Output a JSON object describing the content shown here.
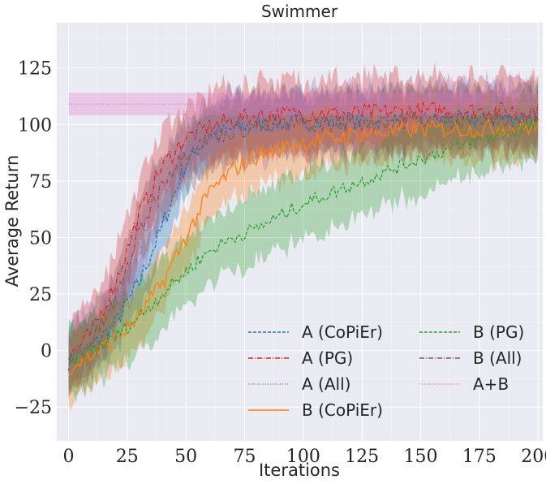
{
  "chart_data": {
    "type": "line",
    "title": "Swimmer",
    "xlabel": "Iterations",
    "ylabel": "Average Return",
    "xlim": [
      -5,
      202
    ],
    "ylim": [
      -40,
      145
    ],
    "xticks": [
      0,
      25,
      50,
      75,
      100,
      125,
      150,
      175,
      200
    ],
    "yticks": [
      -25,
      0,
      25,
      50,
      75,
      100,
      125
    ],
    "ytick_labels": [
      "−25",
      "0",
      "25",
      "50",
      "75",
      "100",
      "125"
    ],
    "grid": true,
    "background": "#EAEAF2",
    "legend": {
      "placement": "lower-right",
      "columns": 2,
      "entries": [
        {
          "name": "A (CoPiEr)",
          "color": "#1f77b4",
          "dash": "dashed"
        },
        {
          "name": "A (PG)",
          "color": "#d62728",
          "dash": "dashdot"
        },
        {
          "name": "A (All)",
          "color": "#9467bd",
          "dash": "dotted"
        },
        {
          "name": "B (CoPiEr)",
          "color": "#ff7f0e",
          "dash": "solid"
        },
        {
          "name": "B (PG)",
          "color": "#2ca02c",
          "dash": "dashed"
        },
        {
          "name": "B (All)",
          "color": "#8c564b",
          "dash": "dashdot"
        },
        {
          "name": "A+B",
          "color": "#e377c2",
          "dash": "dotted"
        }
      ]
    },
    "series": [
      {
        "name": "A (CoPiEr)",
        "color": "#1f77b4",
        "dash": "dashed",
        "band": 12,
        "noise": 4,
        "x": [
          0,
          10,
          20,
          30,
          40,
          50,
          60,
          70,
          80,
          100,
          125,
          150,
          175,
          200
        ],
        "y": [
          -5,
          2,
          12,
          30,
          55,
          83,
          95,
          98,
          100,
          101,
          101,
          102,
          102,
          103
        ]
      },
      {
        "name": "A (PG)",
        "color": "#d62728",
        "dash": "dashdot",
        "band": 15,
        "noise": 4,
        "x": [
          0,
          10,
          20,
          30,
          40,
          50,
          60,
          70,
          80,
          100,
          125,
          150,
          175,
          200
        ],
        "y": [
          -3,
          8,
          30,
          60,
          82,
          94,
          99,
          102,
          104,
          105,
          105,
          106,
          106,
          106
        ]
      },
      {
        "name": "A (All)",
        "color": "#9467bd",
        "dash": "dotted",
        "band": 14,
        "noise": 4,
        "x": [
          0,
          10,
          20,
          30,
          40,
          50,
          60,
          70,
          80,
          100,
          125,
          150,
          175,
          200
        ],
        "y": [
          -4,
          5,
          20,
          45,
          72,
          88,
          95,
          98,
          100,
          101,
          102,
          103,
          103,
          103
        ]
      },
      {
        "name": "B (CoPiEr)",
        "color": "#ff7f0e",
        "dash": "solid",
        "band": 13,
        "noise": 4,
        "x": [
          0,
          10,
          20,
          30,
          40,
          50,
          60,
          70,
          80,
          100,
          125,
          150,
          175,
          200
        ],
        "y": [
          -8,
          -2,
          5,
          15,
          30,
          50,
          70,
          80,
          86,
          92,
          96,
          98,
          98,
          99
        ]
      },
      {
        "name": "B (PG)",
        "color": "#2ca02c",
        "dash": "dashed",
        "band": 15,
        "noise": 3,
        "x": [
          0,
          10,
          20,
          30,
          40,
          50,
          60,
          70,
          80,
          100,
          125,
          150,
          175,
          200
        ],
        "y": [
          -6,
          0,
          6,
          15,
          25,
          35,
          44,
          50,
          54,
          65,
          75,
          85,
          93,
          100
        ]
      },
      {
        "name": "B (All)",
        "color": "#8c564b",
        "dash": "dashdot",
        "band": 14,
        "noise": 4,
        "x": [
          0,
          10,
          20,
          30,
          40,
          50,
          60,
          70,
          80,
          100,
          125,
          150,
          175,
          200
        ],
        "y": [
          -4,
          4,
          22,
          52,
          75,
          88,
          94,
          97,
          99,
          100,
          101,
          102,
          102,
          103
        ]
      },
      {
        "name": "A+B",
        "color": "#e377c2",
        "dash": "dotted",
        "band": 5,
        "noise": 0,
        "x": [
          0,
          200
        ],
        "y": [
          109,
          109
        ]
      }
    ]
  }
}
